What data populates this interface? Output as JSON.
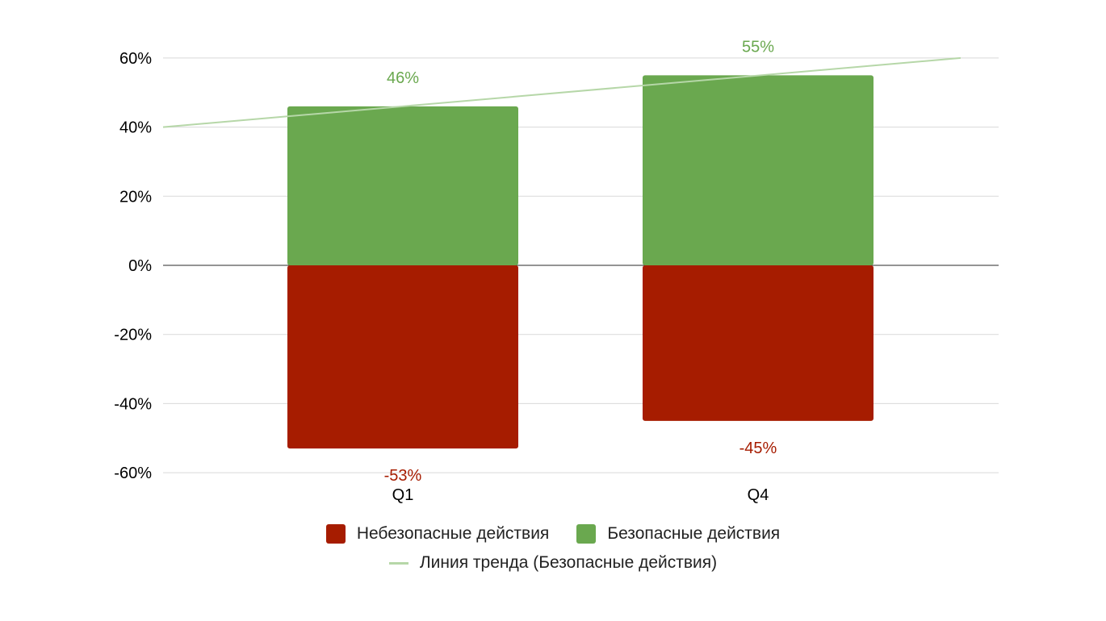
{
  "chart_data": {
    "type": "bar",
    "stacked": true,
    "categories": [
      "Q1",
      "Q4"
    ],
    "series": [
      {
        "name": "Небезопасные действия",
        "values": [
          -53,
          -45
        ],
        "labels": [
          "-53%",
          "-45%"
        ],
        "color": "#a61c00"
      },
      {
        "name": "Безопасные действия",
        "values": [
          46,
          55
        ],
        "labels": [
          "46%",
          "55%"
        ],
        "color": "#6aa84f"
      }
    ],
    "trendline": {
      "name": "Линия тренда (Безопасные действия)",
      "color": "#b6d7a8",
      "values": [
        40,
        60
      ]
    },
    "ylim": [
      -60,
      60
    ],
    "yticks": [
      60,
      40,
      20,
      0,
      -20,
      -40,
      -60
    ],
    "ytick_labels": [
      "60%",
      "40%",
      "20%",
      "0%",
      "-20%",
      "-40%",
      "-60%"
    ],
    "grid": true,
    "legend_position": "bottom",
    "title": "",
    "xlabel": "",
    "ylabel": ""
  }
}
